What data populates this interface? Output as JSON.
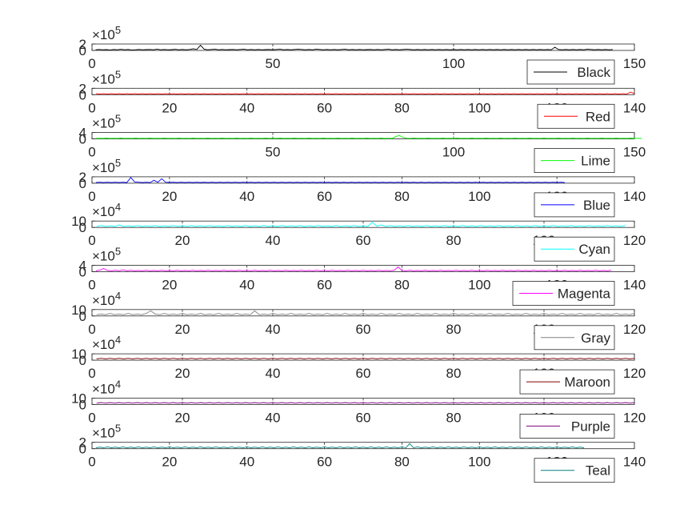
{
  "chart_data": [
    {
      "type": "line",
      "legend": "Black",
      "color": "#000000",
      "xlim": [
        0,
        150
      ],
      "xticks": [
        0,
        50,
        100,
        150
      ],
      "yticks": [
        0,
        2
      ],
      "exponent": "5",
      "ylim": [
        0,
        2
      ],
      "values": [
        0.2,
        0.3,
        0.2,
        0.25,
        0.15,
        0.3,
        0.2,
        0.35,
        0.2,
        0.3,
        0.15,
        0.2,
        0.3,
        0.2,
        0.25,
        0.3,
        0.2,
        0.4,
        0.2,
        0.3,
        0.2,
        0.25,
        0.35,
        0.2,
        0.3,
        0.2,
        0.3,
        0.5,
        0.3,
        1.6,
        0.4,
        0.2,
        0.3,
        0.4,
        0.2,
        0.3,
        0.2,
        0.25,
        0.3,
        0.2,
        0.3,
        0.4,
        0.2,
        0.3,
        0.2,
        0.3,
        0.2,
        0.25,
        0.3,
        0.2,
        0.3,
        0.4,
        0.2,
        0.3,
        0.2,
        0.3,
        0.4,
        0.3,
        0.2,
        0.3,
        0.2,
        0.4,
        0.3,
        0.2,
        0.3,
        0.2,
        0.3,
        0.2,
        0.3,
        0.4,
        0.2,
        0.3,
        0.2,
        0.3,
        0.2,
        0.25,
        0.3,
        0.2,
        0.3,
        0.2,
        0.3,
        0.4,
        0.2,
        0.3,
        0.2,
        0.3,
        0.4,
        0.3,
        0.2,
        0.3,
        0.2,
        0.3,
        0.2,
        0.3,
        0.2,
        0.3,
        0.2,
        0.3,
        0.2,
        0.3,
        0.2,
        0.3,
        0.2,
        0.3,
        0.2,
        0.3,
        0.2,
        0.3,
        0.2,
        0.3,
        0.2,
        0.3,
        0.2,
        0.3,
        0.2,
        0.3,
        0.2,
        0.3,
        0.2,
        0.3,
        0.2,
        0.3,
        0.2,
        0.3,
        0.2,
        0.3,
        0.2,
        1.0,
        0.3,
        0.2,
        0.3,
        0.2,
        0.3,
        0.2,
        0.3,
        0.2,
        0.4,
        0.3,
        0.2,
        0.3,
        0.2,
        0.3,
        0.2,
        0.3
      ]
    },
    {
      "type": "line",
      "legend": "Red",
      "color": "#ff0000",
      "xlim": [
        0,
        140
      ],
      "xticks": [
        0,
        20,
        40,
        60,
        80,
        100,
        120,
        140
      ],
      "yticks": [
        0,
        2
      ],
      "exponent": "5",
      "ylim": [
        0,
        2
      ],
      "values": [
        0.3,
        0.2,
        0.3,
        0.2,
        0.3,
        0.2,
        0.3,
        0.2,
        0.3,
        0.2,
        0.3,
        0.2,
        0.3,
        0.2,
        0.3,
        0.2,
        0.3,
        0.2,
        0.3,
        0.2,
        0.3,
        0.2,
        0.3,
        0.2,
        0.3,
        0.2,
        0.3,
        0.2,
        0.3,
        0.2,
        0.3,
        0.2,
        0.3,
        0.2,
        0.3,
        0.2,
        0.3,
        0.2,
        0.3,
        0.2,
        0.3,
        0.2,
        0.3,
        0.2,
        0.3,
        0.2,
        0.3,
        0.2,
        0.3,
        0.2,
        0.3,
        0.2,
        0.3,
        0.2,
        0.3,
        0.2,
        0.3,
        0.2,
        0.3,
        0.2,
        0.3,
        0.2,
        0.3,
        0.2,
        0.3,
        0.2,
        0.3,
        0.2,
        0.3,
        0.2,
        0.3,
        0.2,
        0.3,
        0.2,
        0.3,
        0.2,
        0.3,
        0.2,
        0.3,
        0.2,
        0.3,
        0.2,
        0.3,
        0.2,
        0.3,
        0.2,
        0.3,
        0.2,
        0.3,
        0.2,
        0.3,
        0.2,
        0.3,
        0.2,
        0.3,
        0.2,
        0.3,
        0.2,
        0.3,
        0.2,
        0.3,
        0.2,
        0.3,
        0.2,
        0.3,
        0.2,
        0.3,
        0.2,
        0.3,
        0.2,
        0.3,
        0.2,
        0.3,
        0.2,
        0.3,
        0.2,
        0.3,
        0.2,
        0.3,
        0.2,
        0.3,
        0.2,
        0.3,
        0.2,
        0.3,
        0.2,
        0.3,
        0.2,
        0.3,
        0.2,
        0.3,
        0.2,
        0.3,
        0.2,
        0.3,
        0.2,
        0.3,
        0.2,
        0.8,
        0.3
      ]
    },
    {
      "type": "line",
      "legend": "Lime",
      "color": "#00ff00",
      "xlim": [
        0,
        150
      ],
      "xticks": [
        0,
        50,
        100,
        150
      ],
      "yticks": [
        0,
        4
      ],
      "exponent": "5",
      "ylim": [
        0,
        4
      ],
      "values": [
        0.3,
        0.4,
        0.3,
        0.5,
        0.3,
        0.4,
        0.3,
        0.5,
        0.3,
        0.4,
        0.3,
        0.5,
        0.3,
        0.4,
        0.3,
        0.5,
        0.3,
        0.4,
        0.3,
        0.5,
        0.3,
        0.4,
        0.3,
        0.5,
        0.3,
        0.4,
        0.3,
        0.5,
        0.3,
        0.4,
        0.3,
        0.5,
        0.3,
        0.4,
        0.3,
        0.5,
        0.3,
        0.4,
        0.3,
        0.5,
        0.3,
        0.4,
        0.3,
        0.5,
        0.3,
        0.4,
        0.3,
        0.5,
        0.3,
        0.4,
        0.3,
        0.5,
        0.3,
        0.4,
        0.3,
        0.5,
        0.3,
        0.4,
        0.3,
        0.5,
        0.3,
        0.4,
        0.3,
        0.5,
        0.3,
        0.4,
        0.3,
        0.5,
        0.3,
        0.4,
        0.3,
        0.5,
        0.3,
        0.4,
        0.3,
        0.5,
        0.3,
        0.4,
        0.3,
        0.5,
        0.3,
        0.4,
        0.3,
        1.5,
        2.2,
        1.0,
        0.4,
        0.3,
        0.5,
        0.3,
        0.4,
        0.3,
        0.5,
        0.3,
        0.4,
        0.3,
        0.5,
        0.3,
        0.4,
        0.3,
        0.5,
        0.3,
        0.4,
        0.3,
        0.5,
        0.3,
        0.4,
        0.3,
        0.5,
        0.3,
        0.4,
        0.3,
        0.5,
        0.3,
        0.4,
        0.3,
        0.5,
        0.3,
        0.4,
        0.3,
        0.5,
        0.3,
        0.4,
        0.3,
        0.5,
        0.3,
        0.4,
        0.3,
        0.5,
        0.3,
        0.4,
        0.3,
        0.5,
        0.3,
        0.4,
        0.3,
        0.5,
        0.3,
        0.4,
        0.3,
        0.5,
        0.3,
        0.4,
        0.3,
        0.5,
        0.3,
        0.4,
        0.3,
        0.5,
        0.3,
        0.4,
        0.3
      ]
    },
    {
      "type": "line",
      "legend": "Blue",
      "color": "#0000ff",
      "xlim": [
        0,
        140
      ],
      "xticks": [
        0,
        20,
        40,
        60,
        80,
        100,
        120,
        140
      ],
      "yticks": [
        0,
        2
      ],
      "exponent": "5",
      "ylim": [
        0,
        2
      ],
      "values": [
        0.2,
        0.3,
        0.2,
        0.3,
        0.2,
        0.3,
        0.2,
        0.3,
        0.2,
        1.8,
        0.4,
        0.3,
        0.2,
        0.3,
        0.2,
        0.9,
        0.3,
        1.4,
        0.3,
        0.2,
        0.3,
        0.2,
        0.3,
        0.2,
        0.3,
        0.2,
        0.3,
        0.2,
        0.3,
        0.2,
        0.3,
        0.2,
        0.3,
        0.2,
        0.3,
        0.2,
        0.3,
        0.2,
        0.3,
        0.2,
        0.3,
        0.2,
        0.3,
        0.2,
        0.3,
        0.2,
        0.3,
        0.2,
        0.3,
        0.2,
        0.3,
        0.2,
        0.3,
        0.2,
        0.3,
        0.2,
        0.3,
        0.2,
        0.3,
        0.2,
        0.3,
        0.2,
        0.3,
        0.2,
        0.3,
        0.2,
        0.3,
        0.2,
        0.3,
        0.2,
        0.3,
        0.2,
        0.3,
        0.2,
        0.3,
        0.2,
        0.3,
        0.2,
        0.3,
        0.2,
        0.3,
        0.2,
        0.3,
        0.2,
        0.3,
        0.2,
        0.3,
        0.2,
        0.3,
        0.2,
        0.3,
        0.2,
        0.3,
        0.2,
        0.3,
        0.2,
        0.3,
        0.2,
        0.3,
        0.2,
        0.3,
        0.2,
        0.3,
        0.2,
        0.3,
        0.2,
        0.3,
        0.2,
        0.3,
        0.2,
        0.3,
        0.2,
        0.3,
        0.2,
        0.3,
        0.2,
        0.3,
        0.2,
        0.3,
        0.2,
        0.3,
        0.2
      ]
    },
    {
      "type": "line",
      "legend": "Cyan",
      "color": "#00ffff",
      "xlim": [
        0,
        120
      ],
      "xticks": [
        0,
        20,
        40,
        60,
        80,
        100,
        120
      ],
      "yticks": [
        0,
        10
      ],
      "exponent": "4",
      "ylim": [
        0,
        10
      ],
      "values": [
        1.5,
        3,
        1.5,
        2.5,
        1.5,
        4,
        1.5,
        2.5,
        1.5,
        3,
        1.5,
        2.5,
        1.5,
        3,
        1.5,
        2.5,
        1.5,
        3,
        1.5,
        2.5,
        1.5,
        3,
        1.5,
        2.5,
        1.5,
        3,
        1.5,
        2.5,
        1.5,
        3,
        1.5,
        2.5,
        1.5,
        3,
        1.5,
        2.5,
        1.5,
        3,
        1.5,
        2.5,
        1.5,
        3,
        1.5,
        2.5,
        1.5,
        3,
        1.5,
        2.5,
        1.5,
        3,
        1.5,
        2.5,
        1.5,
        3,
        1.5,
        2.5,
        1.5,
        3,
        1.5,
        2.5,
        1.5,
        8,
        2,
        4,
        1.5,
        3,
        1.5,
        2.5,
        1.5,
        3,
        1.5,
        2.5,
        1.5,
        3,
        1.5,
        2.5,
        1.5,
        3,
        1.5,
        2.5,
        1.5,
        3,
        1.5,
        2.5,
        1.5,
        3,
        1.5,
        2.5,
        1.5,
        3,
        1.5,
        2.5,
        1.5,
        3,
        1.5,
        2.5,
        1.5,
        3,
        1.5,
        2.5,
        1.5,
        3,
        1.5,
        2.5,
        1.5,
        3,
        1.5,
        2.5,
        1.5,
        3,
        1.5,
        2.5,
        1.5,
        3,
        1.5,
        2.5,
        1.5,
        3
      ]
    },
    {
      "type": "line",
      "legend": "Magenta",
      "color": "#ff00ff",
      "xlim": [
        0,
        140
      ],
      "xticks": [
        0,
        20,
        40,
        60,
        80,
        100,
        120,
        140
      ],
      "yticks": [
        0,
        4
      ],
      "exponent": "5",
      "ylim": [
        0,
        4
      ],
      "values": [
        0.5,
        1.0,
        2.0,
        0.8,
        0.6,
        0.9,
        0.6,
        1.2,
        0.6,
        0.9,
        0.6,
        0.8,
        0.6,
        0.9,
        0.6,
        0.8,
        0.6,
        0.9,
        0.6,
        0.8,
        0.6,
        0.9,
        0.6,
        0.8,
        0.6,
        0.9,
        0.6,
        0.8,
        0.6,
        0.9,
        0.6,
        0.8,
        0.6,
        0.9,
        0.6,
        0.8,
        0.6,
        0.9,
        0.6,
        0.8,
        0.6,
        0.9,
        0.6,
        0.8,
        0.6,
        0.9,
        0.6,
        0.8,
        0.6,
        0.9,
        0.6,
        0.8,
        0.6,
        0.9,
        0.6,
        0.8,
        0.6,
        0.9,
        0.6,
        0.8,
        0.6,
        0.9,
        0.6,
        0.8,
        0.6,
        0.9,
        0.6,
        0.8,
        0.6,
        0.9,
        0.6,
        0.8,
        0.6,
        0.9,
        0.6,
        0.8,
        0.6,
        0.9,
        3.0,
        0.8,
        0.6,
        0.9,
        0.6,
        0.8,
        0.6,
        0.9,
        0.6,
        0.8,
        0.6,
        0.9,
        0.6,
        0.8,
        0.6,
        0.9,
        0.6,
        0.8,
        0.6,
        0.9,
        0.6,
        0.8,
        0.6,
        0.9,
        0.6,
        0.8,
        0.6,
        0.9,
        0.6,
        0.8,
        0.6,
        0.9,
        0.6,
        0.8,
        0.6,
        0.9,
        0.6,
        0.8,
        0.6,
        0.9,
        0.6,
        0.8,
        0.6,
        0.9,
        0.6,
        0.8,
        0.6,
        0.9,
        0.6,
        0.8,
        0.6,
        0.9,
        0.6,
        0.8,
        0.6,
        0.9
      ]
    },
    {
      "type": "line",
      "legend": "Gray",
      "color": "#808080",
      "xlim": [
        0,
        120
      ],
      "xticks": [
        0,
        20,
        40,
        60,
        80,
        100,
        120
      ],
      "yticks": [
        0,
        10
      ],
      "exponent": "4",
      "ylim": [
        0,
        10
      ],
      "values": [
        2,
        3,
        2,
        4,
        2,
        3,
        2,
        4,
        2,
        3,
        2,
        4,
        8,
        3,
        2,
        4,
        2,
        3,
        2,
        4,
        2,
        3,
        2,
        4,
        2,
        3,
        2,
        4,
        2,
        3,
        2,
        4,
        2,
        3,
        2,
        8,
        2,
        3,
        2,
        4,
        2,
        3,
        2,
        4,
        2,
        3,
        2,
        4,
        2,
        3,
        2,
        4,
        2,
        3,
        2,
        4,
        2,
        3,
        2,
        4,
        2,
        3,
        2,
        4,
        2,
        3,
        2,
        4,
        2,
        3,
        2,
        4,
        2,
        3,
        2,
        4,
        2,
        3,
        2,
        4,
        2,
        3,
        2,
        4,
        2,
        3,
        2,
        4,
        2,
        3,
        2,
        4,
        2,
        3,
        2,
        4,
        2,
        3,
        2,
        4,
        2,
        3,
        2,
        4,
        2,
        3,
        2,
        4,
        2,
        3,
        2,
        4,
        2,
        3,
        2,
        4,
        2,
        3,
        2,
        4
      ]
    },
    {
      "type": "line",
      "legend": "Maroon",
      "color": "#800000",
      "xlim": [
        0,
        120
      ],
      "xticks": [
        0,
        20,
        40,
        60,
        80,
        100,
        120
      ],
      "yticks": [
        0,
        10
      ],
      "exponent": "4",
      "ylim": [
        0,
        10
      ],
      "values": [
        2,
        3,
        2,
        3,
        2,
        3,
        2,
        3,
        2,
        3,
        2,
        3,
        2,
        3,
        2,
        3,
        2,
        3,
        2,
        3,
        2,
        3,
        2,
        3,
        2,
        3,
        2,
        3,
        2,
        3,
        2,
        3,
        2,
        3,
        2,
        3,
        2,
        3,
        2,
        3,
        2,
        3,
        2,
        3,
        2,
        3,
        2,
        3,
        2,
        3,
        2,
        3,
        2,
        3,
        2,
        3,
        2,
        3,
        2,
        3,
        2,
        3,
        2,
        3,
        2,
        3,
        2,
        3,
        2,
        3,
        2,
        3,
        2,
        3,
        2,
        3,
        2,
        3,
        2,
        3,
        2,
        3,
        2,
        3,
        2,
        3,
        2,
        3,
        2,
        3,
        2,
        3,
        2,
        3,
        2,
        3,
        2,
        3,
        2,
        3,
        2,
        3,
        2,
        3,
        2,
        3,
        2,
        3,
        2,
        3,
        2,
        3,
        2,
        3,
        2,
        3,
        2,
        3,
        2,
        3
      ]
    },
    {
      "type": "line",
      "legend": "Purple",
      "color": "#800080",
      "xlim": [
        0,
        120
      ],
      "xticks": [
        0,
        20,
        40,
        60,
        80,
        100,
        120
      ],
      "yticks": [
        0,
        10
      ],
      "exponent": "4",
      "ylim": [
        0,
        10
      ],
      "values": [
        2,
        3,
        2,
        3,
        2,
        3,
        2,
        3,
        2,
        3,
        2,
        3,
        2,
        3,
        2,
        3,
        2,
        3,
        2,
        3,
        2,
        3,
        2,
        3,
        2,
        3,
        2,
        3,
        2,
        3,
        2,
        3,
        2,
        3,
        2,
        3,
        2,
        3,
        2,
        3,
        2,
        3,
        2,
        3,
        2,
        3,
        2,
        3,
        2,
        3,
        2,
        3,
        2,
        3,
        2,
        3,
        2,
        3,
        2,
        3,
        2,
        3,
        2,
        3,
        2,
        3,
        2,
        3,
        2,
        3,
        2,
        3,
        2,
        3,
        2,
        3,
        2,
        3,
        2,
        3,
        2,
        3,
        2,
        3,
        2,
        3,
        2,
        3,
        2,
        3,
        2,
        3,
        2,
        3,
        2,
        3,
        2,
        3,
        2,
        3,
        2,
        3,
        2,
        3,
        2,
        3,
        2,
        3,
        2,
        3,
        2,
        3,
        2,
        3,
        2,
        3,
        2,
        3,
        2,
        3
      ]
    },
    {
      "type": "line",
      "legend": "Teal",
      "color": "#008080",
      "xlim": [
        0,
        140
      ],
      "xticks": [
        0,
        20,
        40,
        60,
        80,
        100,
        120,
        140
      ],
      "yticks": [
        0,
        2
      ],
      "exponent": "5",
      "ylim": [
        0,
        2
      ],
      "values": [
        0.3,
        0.5,
        0.3,
        0.6,
        0.3,
        0.5,
        0.3,
        0.6,
        0.3,
        0.5,
        0.3,
        0.6,
        0.3,
        0.5,
        0.3,
        0.6,
        0.3,
        0.5,
        0.3,
        0.6,
        0.3,
        0.5,
        0.3,
        0.6,
        0.3,
        0.5,
        0.3,
        0.6,
        0.3,
        0.5,
        0.3,
        0.6,
        0.3,
        0.5,
        0.3,
        0.6,
        0.3,
        0.5,
        0.3,
        0.6,
        0.3,
        0.5,
        0.3,
        0.6,
        0.3,
        0.5,
        0.3,
        0.6,
        0.3,
        0.5,
        0.3,
        0.6,
        0.3,
        0.5,
        0.3,
        0.6,
        0.3,
        0.5,
        0.3,
        0.6,
        0.3,
        0.5,
        0.3,
        0.6,
        0.3,
        0.5,
        0.3,
        0.6,
        0.3,
        0.5,
        0.3,
        0.6,
        0.3,
        0.5,
        0.3,
        0.6,
        0.3,
        0.5,
        0.3,
        0.6,
        0.3,
        1.6,
        0.3,
        0.6,
        0.3,
        0.5,
        0.3,
        0.6,
        0.3,
        0.5,
        0.3,
        0.6,
        0.3,
        0.5,
        0.3,
        0.6,
        0.3,
        0.5,
        0.3,
        0.6,
        0.3,
        0.5,
        0.3,
        0.6,
        0.3,
        0.5,
        0.3,
        0.6,
        0.3,
        0.5,
        0.3,
        0.6,
        0.3,
        0.5,
        0.3,
        0.6,
        0.3,
        0.5,
        0.3,
        0.6,
        0.3,
        0.5,
        0.3,
        0.6,
        0.3,
        0.5,
        0.3
      ]
    }
  ]
}
